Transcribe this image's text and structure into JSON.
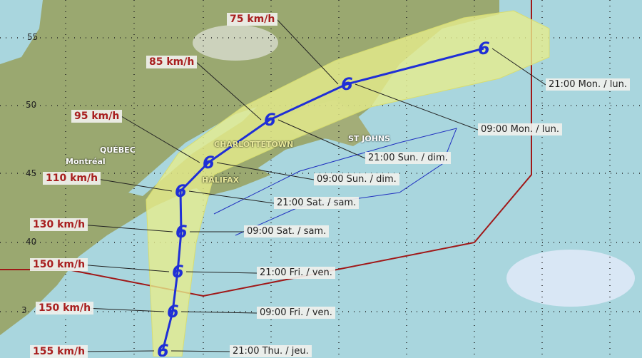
{
  "map": {
    "latitude_labels": [
      "55",
      "50",
      "45",
      "40",
      "3"
    ],
    "cities": [
      "QUÉBEC",
      "Montréal",
      "CHARLOTTETOWN",
      "HALIFAX",
      "ST JOHNS"
    ],
    "colors": {
      "track": "#1f2fd6",
      "cone": "#e6ec8c",
      "ocean": "#a9d6de",
      "land": "#9aa870",
      "boundary": "#a01818",
      "wind_text": "#a81e1e"
    },
    "track_icon": "hurricane-symbol-icon",
    "forecast_points": [
      {
        "time": "21:00 Thu. / jeu.",
        "wind": "155 km/h"
      },
      {
        "time": "09:00 Fri. / ven.",
        "wind": "150 km/h"
      },
      {
        "time": "21:00 Fri. / ven.",
        "wind": "150 km/h"
      },
      {
        "time": "09:00 Sat. / sam.",
        "wind": "130 km/h"
      },
      {
        "time": "21:00 Sat. / sam.",
        "wind": "110 km/h"
      },
      {
        "time": "09:00 Sun. / dim.",
        "wind": "95 km/h"
      },
      {
        "time": "21:00 Sun. / dim.",
        "wind": "85 km/h"
      },
      {
        "time": "09:00 Mon. / lun.",
        "wind": "75 km/h"
      },
      {
        "time": "21:00 Mon. / lun.",
        "wind": ""
      }
    ]
  }
}
